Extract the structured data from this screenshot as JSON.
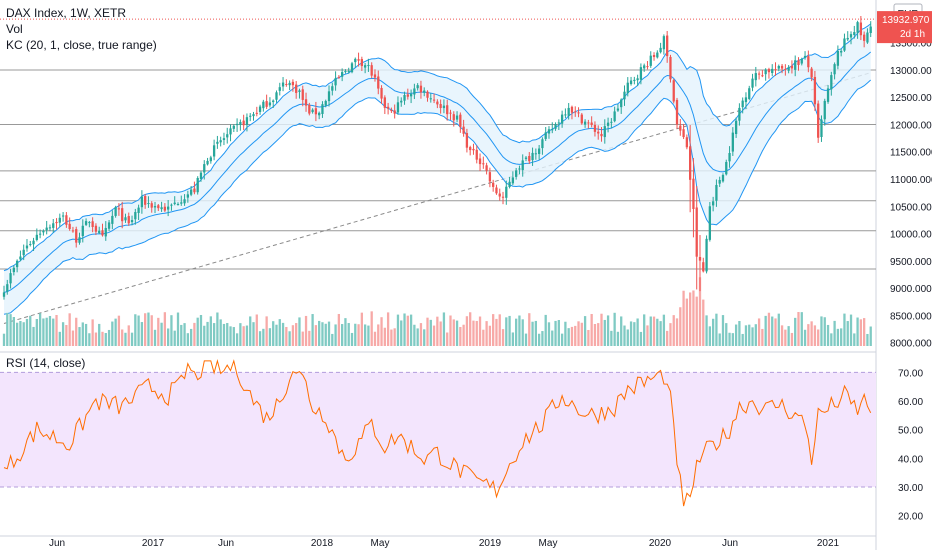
{
  "legend": {
    "symbol": "DAX Index, 1W, XETR",
    "vol": "Vol",
    "kc": "KC (20, 1, close, true range)",
    "rsi": "RSI (14, close)"
  },
  "price_panel": {
    "currency": "EUR",
    "last_price": "13932.970",
    "countdown": "2d 1h",
    "y_ticks": [
      "13500.000",
      "13000.000",
      "12500.000",
      "12000.000",
      "11500.000",
      "11000.000",
      "10500.000",
      "10000.000",
      "9500.000",
      "9000.000",
      "8500.000",
      "8000.000"
    ],
    "y_tick_values": [
      13500,
      13000,
      12500,
      12000,
      11500,
      11000,
      10500,
      10000,
      9500,
      9000,
      8500,
      8000
    ],
    "horizontal_levels": [
      13000,
      12000,
      11150,
      10600,
      10050,
      9350
    ],
    "last_line_value": 13932.97
  },
  "rsi_panel": {
    "y_ticks": [
      "70.00",
      "60.00",
      "50.00",
      "40.00",
      "30.00",
      "20.00"
    ],
    "y_tick_values": [
      70,
      60,
      50,
      40,
      30,
      20
    ],
    "band": [
      30,
      70
    ]
  },
  "x_labels": [
    "Jun",
    "2017",
    "Jun",
    "2018",
    "May",
    "2019",
    "May",
    "2020",
    "Jun",
    "2021"
  ],
  "colors": {
    "up": "#26a69a",
    "down": "#ef5350",
    "vol_up": "#7fcac3",
    "vol_down": "#f7a9a7",
    "kc_line": "#2196f3",
    "kc_fill": "#e3f2fd",
    "rsi_line": "#ff6d00",
    "rsi_band": "#f3e5fd",
    "grid": "#999999",
    "price_label": "#ef5350"
  },
  "chart_data": {
    "type": "candlestick",
    "title": "DAX Index, 1W, XETR",
    "x_labels": [
      "Jun",
      "2017",
      "Jun",
      "2018",
      "May",
      "2019",
      "May",
      "2020",
      "Jun",
      "2021"
    ],
    "y_range_price": [
      7900,
      14100
    ],
    "y_range_rsi": [
      15,
      75
    ],
    "close_path": [
      [
        0,
        9000
      ],
      [
        6,
        9700
      ],
      [
        12,
        10100
      ],
      [
        18,
        10300
      ],
      [
        22,
        9900
      ],
      [
        26,
        10250
      ],
      [
        30,
        9900
      ],
      [
        34,
        10450
      ],
      [
        38,
        10150
      ],
      [
        42,
        10600
      ],
      [
        46,
        10500
      ],
      [
        50,
        10450
      ],
      [
        54,
        10650
      ],
      [
        58,
        10800
      ],
      [
        62,
        11400
      ],
      [
        66,
        11700
      ],
      [
        70,
        11900
      ],
      [
        74,
        12100
      ],
      [
        78,
        12300
      ],
      [
        82,
        12500
      ],
      [
        86,
        12800
      ],
      [
        90,
        12600
      ],
      [
        92,
        12300
      ],
      [
        94,
        12200
      ],
      [
        96,
        12250
      ],
      [
        100,
        12700
      ],
      [
        104,
        13000
      ],
      [
        108,
        13200
      ],
      [
        111,
        13050
      ],
      [
        113,
        12800
      ],
      [
        115,
        12400
      ],
      [
        118,
        12200
      ],
      [
        122,
        12500
      ],
      [
        126,
        12700
      ],
      [
        130,
        12500
      ],
      [
        134,
        12300
      ],
      [
        138,
        12100
      ],
      [
        140,
        11800
      ],
      [
        142,
        11500
      ],
      [
        146,
        11300
      ],
      [
        149,
        10800
      ],
      [
        152,
        10650
      ],
      [
        156,
        11200
      ],
      [
        160,
        11400
      ],
      [
        164,
        11700
      ],
      [
        168,
        12000
      ],
      [
        172,
        12350
      ],
      [
        174,
        12200
      ],
      [
        178,
        12000
      ],
      [
        182,
        11800
      ],
      [
        186,
        12200
      ],
      [
        190,
        12700
      ],
      [
        194,
        13000
      ],
      [
        198,
        13250
      ],
      [
        201,
        13550
      ],
      [
        203,
        12900
      ],
      [
        205,
        12000
      ],
      [
        208,
        11600
      ],
      [
        210,
        10400
      ],
      [
        211,
        9600
      ],
      [
        213,
        9300
      ],
      [
        215,
        10500
      ],
      [
        218,
        11000
      ],
      [
        220,
        11300
      ],
      [
        224,
        12300
      ],
      [
        228,
        12850
      ],
      [
        232,
        13000
      ],
      [
        236,
        13000
      ],
      [
        240,
        13100
      ],
      [
        244,
        13200
      ],
      [
        246,
        12900
      ],
      [
        248,
        11700
      ],
      [
        250,
        12400
      ],
      [
        254,
        13300
      ],
      [
        258,
        13700
      ],
      [
        260,
        13800
      ],
      [
        262,
        13500
      ],
      [
        264,
        13800
      ]
    ],
    "rsi_path": [
      [
        0,
        35
      ],
      [
        10,
        50
      ],
      [
        20,
        45
      ],
      [
        28,
        60
      ],
      [
        36,
        58
      ],
      [
        44,
        65
      ],
      [
        50,
        62
      ],
      [
        54,
        66
      ],
      [
        56,
        72
      ],
      [
        58,
        68
      ],
      [
        62,
        74
      ],
      [
        66,
        70
      ],
      [
        70,
        73
      ],
      [
        72,
        69
      ],
      [
        76,
        60
      ],
      [
        80,
        54
      ],
      [
        84,
        60
      ],
      [
        88,
        72
      ],
      [
        92,
        66
      ],
      [
        94,
        58
      ],
      [
        98,
        55
      ],
      [
        102,
        44
      ],
      [
        104,
        40
      ],
      [
        108,
        45
      ],
      [
        112,
        52
      ],
      [
        116,
        44
      ],
      [
        120,
        48
      ],
      [
        124,
        44
      ],
      [
        128,
        40
      ],
      [
        132,
        42
      ],
      [
        136,
        38
      ],
      [
        140,
        35
      ],
      [
        142,
        33
      ],
      [
        146,
        31
      ],
      [
        150,
        29
      ],
      [
        154,
        38
      ],
      [
        158,
        46
      ],
      [
        164,
        52
      ],
      [
        170,
        62
      ],
      [
        174,
        58
      ],
      [
        178,
        55
      ],
      [
        182,
        56
      ],
      [
        186,
        58
      ],
      [
        190,
        64
      ],
      [
        194,
        66
      ],
      [
        198,
        68
      ],
      [
        201,
        69
      ],
      [
        203,
        60
      ],
      [
        205,
        40
      ],
      [
        207,
        22
      ],
      [
        209,
        28
      ],
      [
        212,
        40
      ],
      [
        216,
        45
      ],
      [
        220,
        48
      ],
      [
        224,
        58
      ],
      [
        228,
        60
      ],
      [
        232,
        57
      ],
      [
        236,
        59
      ],
      [
        240,
        56
      ],
      [
        244,
        52
      ],
      [
        246,
        40
      ],
      [
        248,
        55
      ],
      [
        252,
        58
      ],
      [
        256,
        62
      ],
      [
        258,
        59
      ],
      [
        260,
        57
      ],
      [
        262,
        60
      ],
      [
        264,
        58
      ]
    ]
  }
}
